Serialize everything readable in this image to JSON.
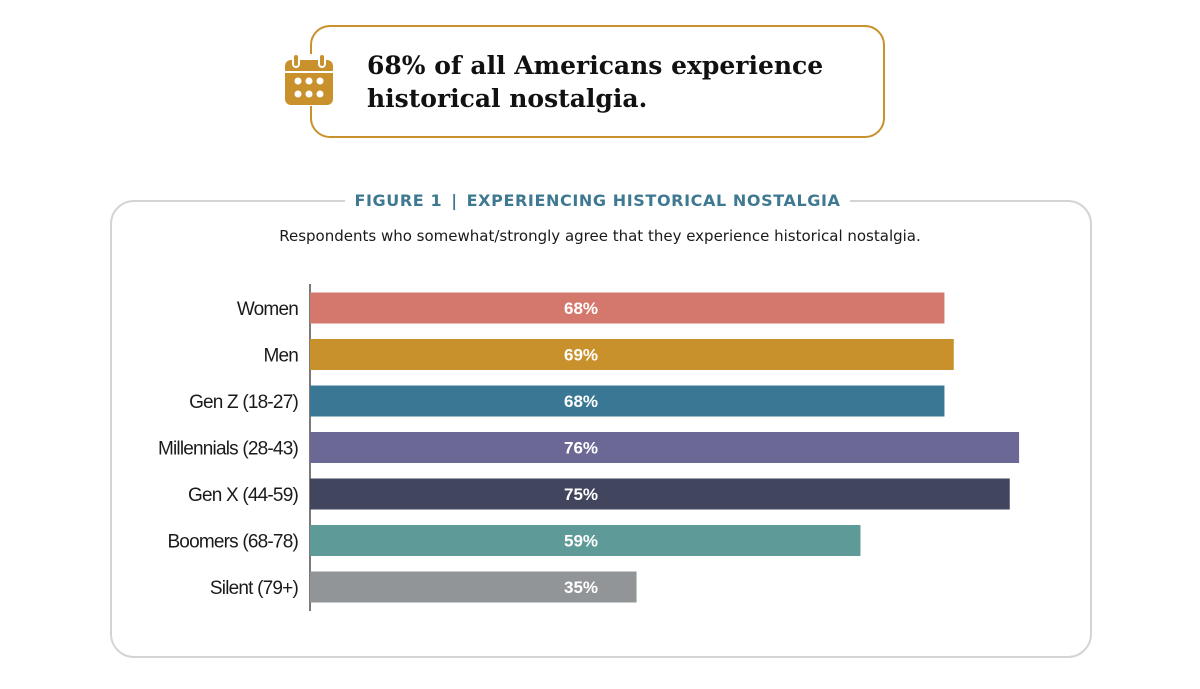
{
  "callout": {
    "icon": "calendar-icon",
    "text_line1": "68% of all Americans experience",
    "text_line2": "historical nostalgia."
  },
  "figure": {
    "label": "FIGURE 1",
    "separator": "|",
    "title": "EXPERIENCING HISTORICAL NOSTALGIA",
    "subtitle": "Respondents who somewhat/strongly agree that they experience historical nostalgia."
  },
  "colors": {
    "accent_gold": "#c9912b",
    "title_teal": "#3f7991",
    "panel_border": "#d4d4d4"
  },
  "chart_data": {
    "type": "bar",
    "orientation": "horizontal",
    "title": "EXPERIENCING HISTORICAL NOSTALGIA",
    "subtitle": "Respondents who somewhat/strongly agree that they experience historical nostalgia.",
    "xlabel": "",
    "ylabel": "",
    "xlim": [
      0,
      100
    ],
    "unit": "%",
    "grid": false,
    "categories": [
      "Women",
      "Men",
      "Gen Z (18-27)",
      "Millennials (28-43)",
      "Gen X (44-59)",
      "Boomers (68-78)",
      "Silent (79+)"
    ],
    "values": [
      68,
      69,
      68,
      76,
      75,
      59,
      35
    ],
    "value_labels": [
      "68%",
      "69%",
      "68%",
      "76%",
      "75%",
      "59%",
      "35%"
    ],
    "colors": [
      "#d4786d",
      "#c9912b",
      "#3a7794",
      "#6c6895",
      "#42455e",
      "#5e9a98",
      "#929598"
    ]
  }
}
